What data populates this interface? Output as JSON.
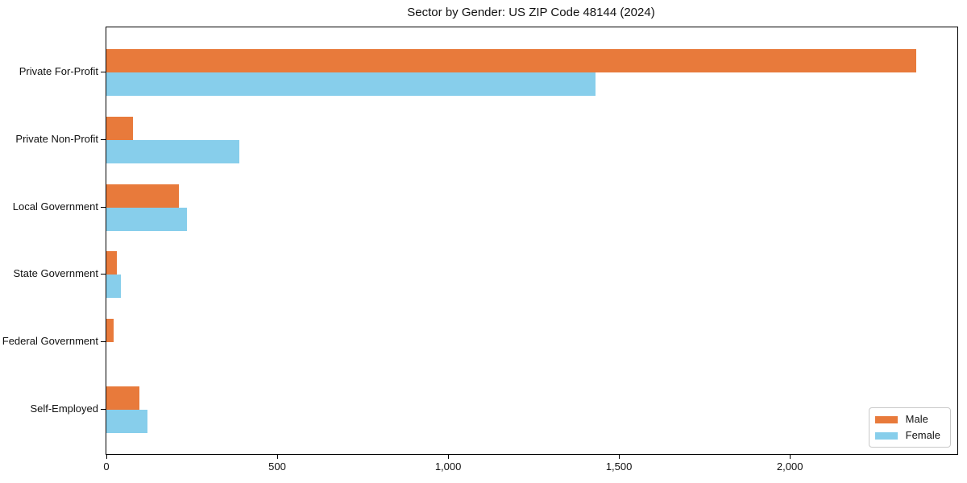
{
  "chart_data": {
    "type": "bar",
    "orientation": "horizontal",
    "title": "Sector by Gender: US ZIP Code 48144 (2024)",
    "categories": [
      "Private For-Profit",
      "Private Non-Profit",
      "Local Government",
      "State Government",
      "Federal Government",
      "Self-Employed"
    ],
    "series": [
      {
        "name": "Male",
        "color": "#e87a3b",
        "values": [
          2370,
          78,
          212,
          31,
          21,
          97
        ]
      },
      {
        "name": "Female",
        "color": "#87ceeb",
        "values": [
          1430,
          390,
          236,
          42,
          0,
          120
        ]
      }
    ],
    "xlim": [
      0,
      2490
    ],
    "xticks": [
      0,
      500,
      1000,
      1500,
      2000
    ],
    "xtick_labels": [
      "0",
      "500",
      "1,000",
      "1,500",
      "2,000"
    ],
    "xlabel": "",
    "ylabel": "",
    "grid": false,
    "legend_position": "lower right",
    "axis_color": "#000000",
    "text_color": "#111111"
  }
}
